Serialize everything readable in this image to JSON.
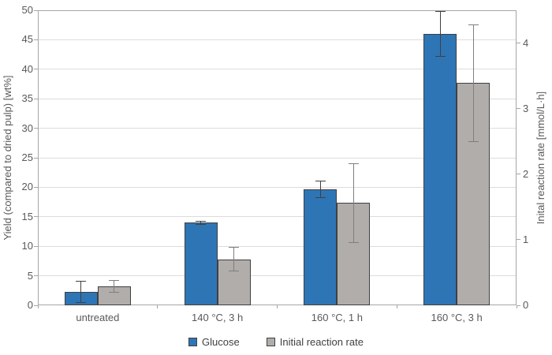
{
  "chart_data": {
    "type": "bar",
    "categories": [
      "untreated",
      "140 °C, 3 h",
      "160 °C, 1 h",
      "160 °C, 3 h"
    ],
    "series": [
      {
        "name": "Glucose",
        "axis": "left",
        "color": "#2E75B6",
        "border_color": "#404040",
        "error_color": "#404040",
        "values": [
          2.3,
          14.0,
          19.6,
          46.0
        ],
        "errors": [
          1.8,
          0.3,
          1.4,
          3.8
        ]
      },
      {
        "name": "Initial reaction rate",
        "axis": "right",
        "color": "#B0ADAA",
        "border_color": "#404040",
        "error_color": "#7F7F7F",
        "values": [
          0.29,
          0.7,
          1.56,
          3.39
        ],
        "errors": [
          0.09,
          0.18,
          0.6,
          0.89
        ]
      }
    ],
    "left_axis": {
      "label": "Yield (compared to dried pulp) [wt%]",
      "min": 0,
      "max": 50,
      "tick_step": 5
    },
    "right_axis": {
      "label": "Inital reaction rate [mmol/L·h]",
      "min": 0,
      "max": 4.5,
      "tick_step": 1
    },
    "legend_position": "bottom",
    "grid": true,
    "colors": {
      "gridline": "#DCDCDC",
      "axis_line": "#A6A6A6",
      "tick_text": "#595959"
    }
  }
}
